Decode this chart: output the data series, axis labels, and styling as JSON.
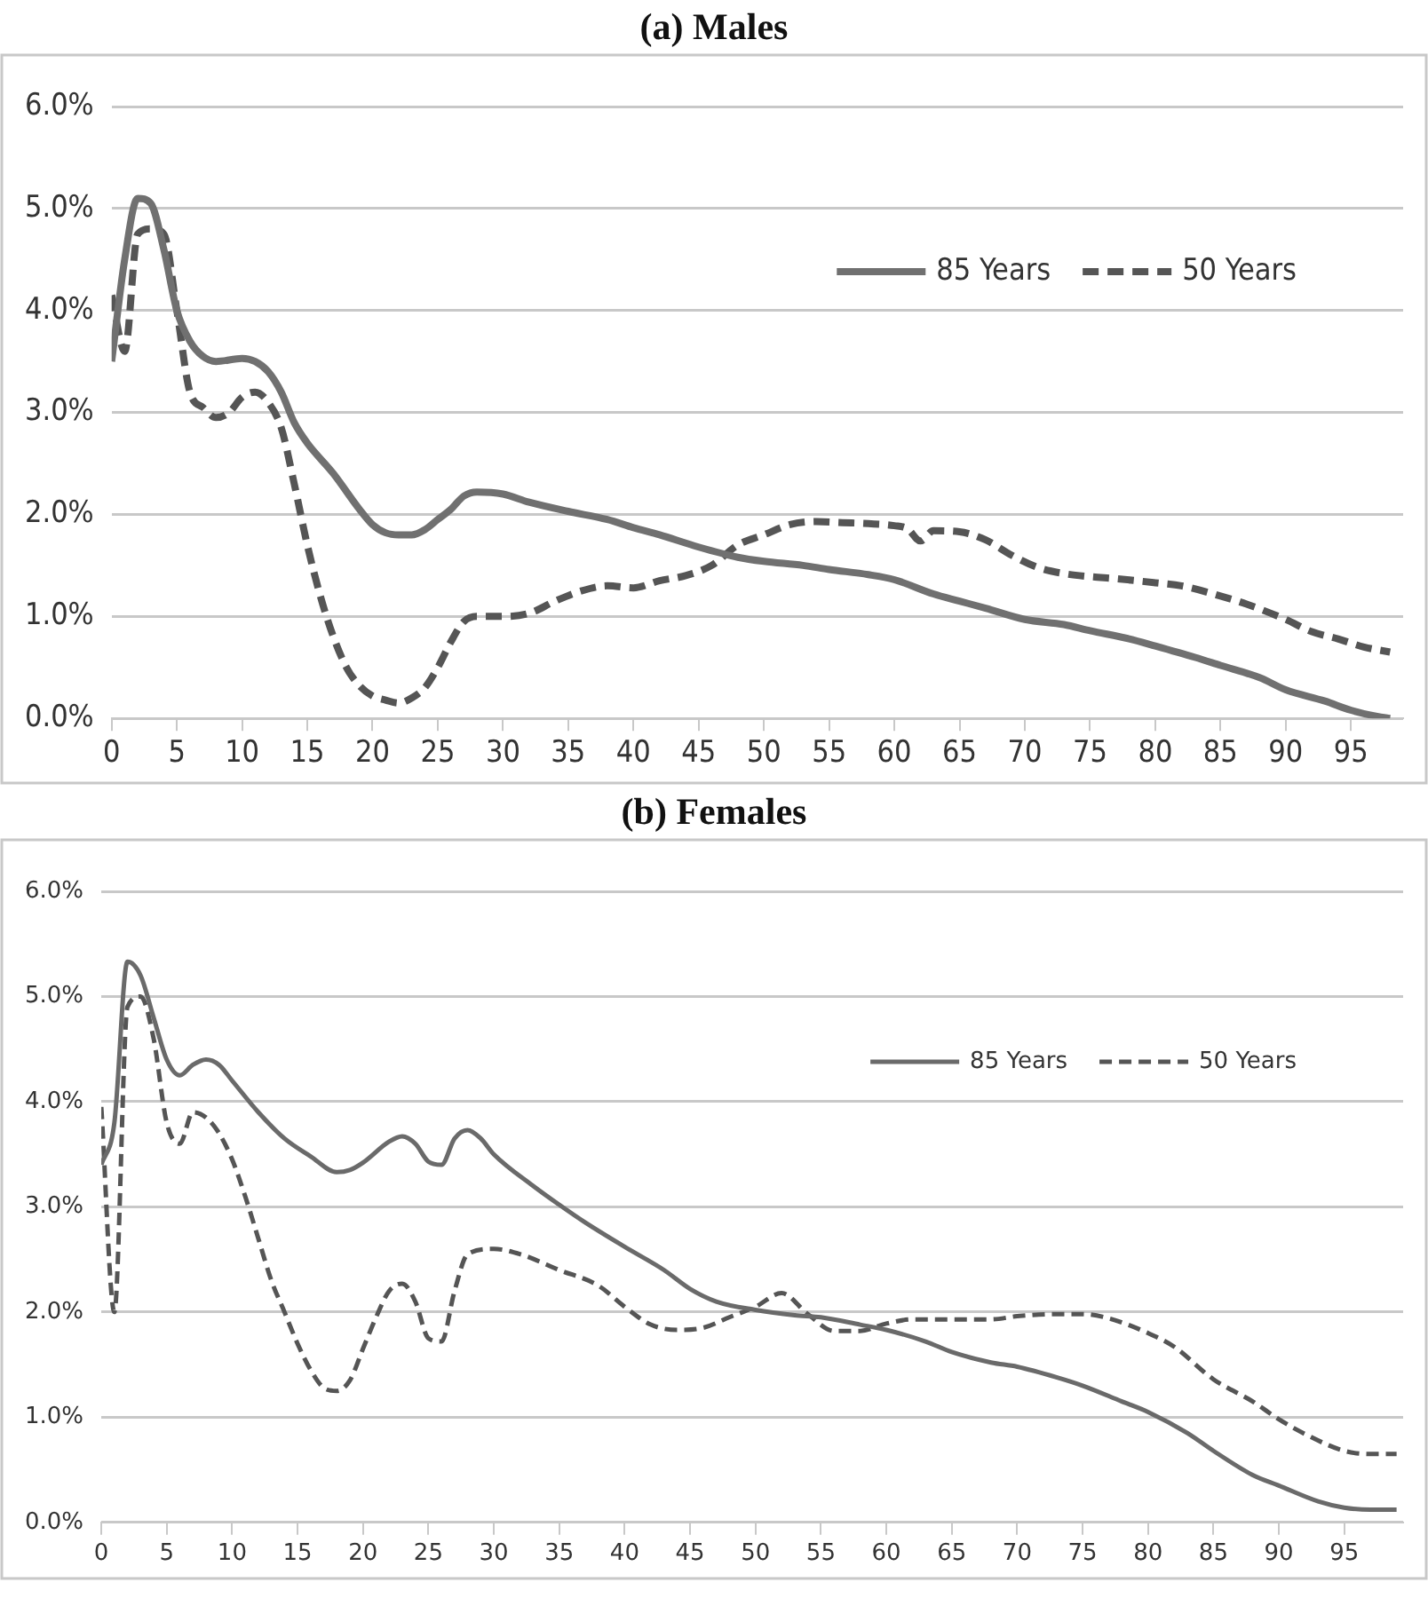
{
  "chart_data": [
    {
      "type": "line",
      "title": "(a)  Males",
      "xlim": [
        0,
        99
      ],
      "xticks": [
        0,
        5,
        10,
        15,
        20,
        25,
        30,
        35,
        40,
        45,
        50,
        55,
        60,
        65,
        70,
        75,
        80,
        85,
        90,
        95
      ],
      "ylim": [
        0,
        6
      ],
      "yticks": [
        {
          "value": 0,
          "label": "0.0%"
        },
        {
          "value": 1,
          "label": "1.0%"
        },
        {
          "value": 2,
          "label": "2.0%"
        },
        {
          "value": 3,
          "label": "3.0%"
        },
        {
          "value": 4,
          "label": "4.0%"
        },
        {
          "value": 5,
          "label": "5.0%"
        },
        {
          "value": 6,
          "label": "6.0%"
        }
      ],
      "grid": "y",
      "legend": "top right",
      "marker": "none",
      "series": [
        {
          "name": "85 Years",
          "color": "#707070",
          "line_style": "solid",
          "x": [
            0,
            1,
            2,
            3,
            4,
            5,
            6,
            7,
            8,
            10,
            11,
            12,
            13,
            14,
            15,
            17,
            19,
            20,
            21,
            22,
            23,
            24,
            25,
            26,
            27,
            28,
            30,
            32,
            35,
            38,
            40,
            42,
            45,
            48,
            50,
            53,
            55,
            58,
            60,
            63,
            65,
            67,
            70,
            73,
            75,
            78,
            80,
            83,
            85,
            88,
            90,
            93,
            95,
            97,
            98
          ],
          "values": [
            3.5,
            4.5,
            5.1,
            5.05,
            4.6,
            4.0,
            3.7,
            3.55,
            3.5,
            3.53,
            3.5,
            3.4,
            3.2,
            2.9,
            2.7,
            2.4,
            2.05,
            1.9,
            1.82,
            1.8,
            1.8,
            1.85,
            1.95,
            2.05,
            2.18,
            2.22,
            2.2,
            2.12,
            2.03,
            1.95,
            1.87,
            1.8,
            1.68,
            1.58,
            1.54,
            1.5,
            1.46,
            1.41,
            1.36,
            1.22,
            1.15,
            1.08,
            0.97,
            0.92,
            0.86,
            0.78,
            0.71,
            0.6,
            0.52,
            0.4,
            0.28,
            0.17,
            0.08,
            0.02,
            0
          ]
        },
        {
          "name": "50 Years",
          "color": "#555555",
          "line_style": "dashed",
          "x": [
            0,
            1,
            2,
            3,
            4,
            5,
            6,
            7,
            8,
            9,
            10,
            11,
            12,
            13,
            14,
            15,
            16,
            17,
            18,
            19,
            20,
            21,
            22,
            23,
            24,
            25,
            26,
            27,
            28,
            30,
            32,
            34,
            36,
            38,
            40,
            42,
            44,
            46,
            48,
            50,
            52,
            54,
            56,
            58,
            60,
            61,
            62,
            63,
            65,
            67,
            69,
            71,
            73,
            75,
            77,
            80,
            82,
            85,
            87,
            90,
            92,
            94,
            96,
            98
          ],
          "values": [
            4.15,
            3.6,
            4.75,
            4.8,
            4.75,
            4.0,
            3.2,
            3.05,
            2.95,
            3.0,
            3.15,
            3.2,
            3.1,
            2.85,
            2.3,
            1.7,
            1.2,
            0.8,
            0.5,
            0.32,
            0.22,
            0.18,
            0.15,
            0.2,
            0.3,
            0.5,
            0.75,
            0.95,
            1.0,
            1.0,
            1.03,
            1.15,
            1.25,
            1.3,
            1.28,
            1.35,
            1.4,
            1.5,
            1.7,
            1.8,
            1.9,
            1.93,
            1.92,
            1.91,
            1.89,
            1.86,
            1.74,
            1.84,
            1.83,
            1.75,
            1.6,
            1.48,
            1.42,
            1.39,
            1.37,
            1.33,
            1.3,
            1.2,
            1.12,
            0.97,
            0.85,
            0.78,
            0.7,
            0.65
          ]
        }
      ]
    },
    {
      "type": "line",
      "title": "(b) Females",
      "xlim": [
        0,
        99.5
      ],
      "xticks": [
        0,
        5,
        10,
        15,
        20,
        25,
        30,
        35,
        40,
        45,
        50,
        55,
        60,
        65,
        70,
        75,
        80,
        85,
        90,
        95
      ],
      "ylim": [
        0,
        6
      ],
      "yticks": [
        {
          "value": 0,
          "label": "0.0%"
        },
        {
          "value": 1,
          "label": "1.0%"
        },
        {
          "value": 2,
          "label": "2.0%"
        },
        {
          "value": 3,
          "label": "3.0%"
        },
        {
          "value": 4,
          "label": "4.0%"
        },
        {
          "value": 5,
          "label": "5.0%"
        },
        {
          "value": 6,
          "label": "6.0%"
        }
      ],
      "grid": "y",
      "legend": "top right",
      "marker": "none",
      "series": [
        {
          "name": "85 Years",
          "color": "#6a6a6a",
          "line_style": "solid",
          "x": [
            0,
            1,
            2,
            3,
            4,
            5,
            6,
            7,
            8,
            9,
            10,
            12,
            14,
            16,
            18,
            19,
            20,
            22,
            23,
            24,
            25,
            26,
            27,
            28,
            29,
            30,
            33,
            35,
            37,
            40,
            43,
            45,
            47,
            50,
            53,
            55,
            58,
            60,
            63,
            65,
            68,
            70,
            73,
            75,
            78,
            80,
            83,
            85,
            88,
            90,
            93,
            95,
            97,
            99
          ],
          "values": [
            3.4,
            3.8,
            5.33,
            5.2,
            4.8,
            4.4,
            4.25,
            4.35,
            4.4,
            4.35,
            4.2,
            3.9,
            3.65,
            3.48,
            3.33,
            3.35,
            3.42,
            3.62,
            3.67,
            3.6,
            3.43,
            3.4,
            3.65,
            3.73,
            3.65,
            3.5,
            3.2,
            3.02,
            2.85,
            2.62,
            2.4,
            2.22,
            2.1,
            2.02,
            1.97,
            1.95,
            1.88,
            1.83,
            1.72,
            1.62,
            1.52,
            1.48,
            1.38,
            1.3,
            1.15,
            1.05,
            0.85,
            0.68,
            0.45,
            0.35,
            0.2,
            0.14,
            0.12,
            0.12
          ]
        },
        {
          "name": "50 Years",
          "color": "#555555",
          "line_style": "dashed",
          "x": [
            0,
            1,
            2,
            3,
            4,
            5,
            6,
            7,
            8,
            9,
            10,
            11,
            12,
            13,
            14,
            15,
            16,
            17,
            18,
            19,
            20,
            21,
            22,
            23,
            24,
            25,
            26,
            27,
            28,
            30,
            32,
            35,
            38,
            40,
            42,
            44,
            46,
            48,
            50,
            52,
            54,
            56,
            58,
            60,
            62,
            65,
            68,
            70,
            73,
            75,
            77,
            80,
            82,
            85,
            88,
            90,
            92,
            95,
            97,
            99
          ],
          "values": [
            3.95,
            2.0,
            4.9,
            5.0,
            4.6,
            3.8,
            3.6,
            3.9,
            3.85,
            3.7,
            3.45,
            3.1,
            2.7,
            2.3,
            2.0,
            1.7,
            1.45,
            1.28,
            1.25,
            1.35,
            1.65,
            1.95,
            2.2,
            2.27,
            2.1,
            1.75,
            1.72,
            2.2,
            2.55,
            2.6,
            2.55,
            2.4,
            2.25,
            2.05,
            1.88,
            1.83,
            1.85,
            1.95,
            2.05,
            2.18,
            1.98,
            1.82,
            1.82,
            1.89,
            1.93,
            1.93,
            1.93,
            1.96,
            1.98,
            1.98,
            1.94,
            1.8,
            1.67,
            1.36,
            1.15,
            0.98,
            0.84,
            0.68,
            0.65,
            0.65
          ]
        }
      ]
    }
  ]
}
